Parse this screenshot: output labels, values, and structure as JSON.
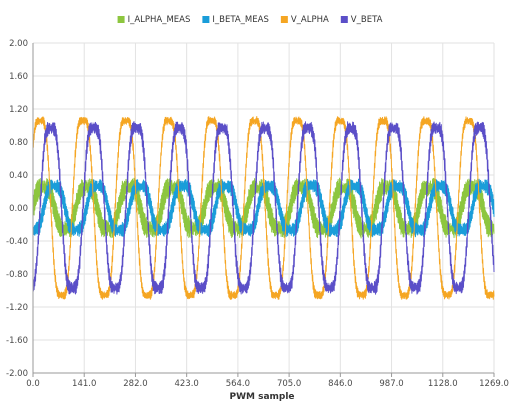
{
  "chart_data": {
    "type": "line",
    "title": "",
    "xlabel": "PWM sample",
    "ylabel": "",
    "xlim": [
      0,
      1269
    ],
    "ylim": [
      -2.0,
      2.0
    ],
    "x_ticks": [
      "0.0",
      "141.0",
      "282.0",
      "423.0",
      "564.0",
      "705.0",
      "846.0",
      "987.0",
      "1128.0",
      "1269.0"
    ],
    "y_ticks": [
      "2.00",
      "1.60",
      "1.20",
      "0.80",
      "0.40",
      "0.00",
      "-0.40",
      "-0.80",
      "-1.20",
      "-1.60",
      "-2.00"
    ],
    "grid": true,
    "legend_position": "top-center",
    "period_samples": 118,
    "series": [
      {
        "name": "I_ALPHA_MEAS",
        "color": "#8dc63f",
        "amplitude": 0.28,
        "phase_deg": 0,
        "ripple": 0.08
      },
      {
        "name": "I_BETA_MEAS",
        "color": "#1a9dd9",
        "amplitude": 0.3,
        "phase_deg": -90,
        "ripple": 0.06
      },
      {
        "name": "V_ALPHA",
        "color": "#f5a623",
        "amplitude": 1.2,
        "phase_deg": 30,
        "ripple": 0.04
      },
      {
        "name": "V_BETA",
        "color": "#5b4fc8",
        "amplitude": 1.1,
        "phase_deg": -60,
        "ripple": 0.06
      }
    ]
  }
}
